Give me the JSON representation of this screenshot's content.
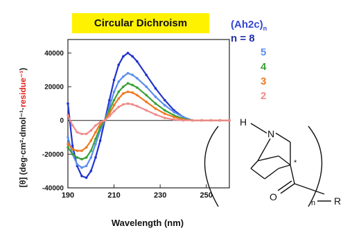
{
  "chart_data": {
    "type": "line",
    "title": "Circular Dichroism",
    "xlabel": "Wavelength (nm)",
    "ylabel_prefix": "[θ] (deg·cm²·dmol⁻¹·",
    "ylabel_highlight": "residue⁻¹",
    "ylabel_suffix": ")",
    "xlim": [
      190,
      260
    ],
    "ylim": [
      -40000,
      48000
    ],
    "xticks": [
      190,
      210,
      230,
      250
    ],
    "yticks": [
      -40000,
      -20000,
      0,
      20000,
      40000
    ],
    "ytick_labels": [
      "-40000",
      "-20000",
      "0",
      "20000",
      "40000"
    ],
    "legend_title": "(Ah2c)",
    "legend_title_sub": "n",
    "legend_prefix": "n = ",
    "series": [
      {
        "name": "8",
        "color": "#2233cc",
        "x": [
          190,
          192,
          194,
          196,
          198,
          200,
          202,
          204,
          206,
          208,
          210,
          212,
          214,
          216,
          218,
          220,
          224,
          228,
          232,
          236,
          240,
          244,
          248,
          252,
          256,
          260
        ],
        "y": [
          10000,
          -15000,
          -27000,
          -33000,
          -34000,
          -30000,
          -22000,
          -12000,
          0,
          12000,
          24000,
          33000,
          38000,
          40000,
          38000,
          35000,
          27000,
          19000,
          12000,
          6000,
          2000,
          0,
          0,
          0,
          0,
          0
        ]
      },
      {
        "name": "5",
        "color": "#5a8ef0",
        "x": [
          190,
          192,
          194,
          196,
          198,
          200,
          202,
          204,
          206,
          208,
          210,
          212,
          214,
          216,
          218,
          220,
          224,
          228,
          232,
          236,
          240,
          244,
          248,
          252,
          256,
          260
        ],
        "y": [
          -10000,
          -20000,
          -26000,
          -28000,
          -27000,
          -22000,
          -14000,
          -6000,
          0,
          8000,
          17000,
          23000,
          26000,
          28000,
          27000,
          25000,
          20000,
          14000,
          9000,
          5000,
          2000,
          0,
          0,
          0,
          0,
          0
        ]
      },
      {
        "name": "4",
        "color": "#3aa13a",
        "x": [
          190,
          192,
          194,
          196,
          198,
          200,
          202,
          204,
          206,
          208,
          210,
          212,
          214,
          216,
          218,
          220,
          224,
          228,
          232,
          236,
          240,
          244,
          248,
          252,
          256,
          260
        ],
        "y": [
          -16000,
          -20000,
          -22000,
          -23000,
          -22000,
          -18000,
          -11000,
          -4000,
          0,
          6000,
          12000,
          17000,
          20000,
          22000,
          21000,
          19500,
          15000,
          10000,
          6000,
          3000,
          1000,
          0,
          0,
          0,
          0,
          0
        ]
      },
      {
        "name": "3",
        "color": "#f07820",
        "x": [
          190,
          192,
          194,
          196,
          198,
          200,
          202,
          204,
          206,
          208,
          210,
          212,
          214,
          216,
          218,
          220,
          224,
          228,
          232,
          236,
          240,
          244,
          248,
          252,
          256,
          260
        ],
        "y": [
          -14000,
          -17000,
          -18000,
          -18000,
          -16000,
          -12000,
          -7000,
          -2000,
          0,
          4000,
          9000,
          13000,
          16000,
          17000,
          16500,
          15000,
          11000,
          7000,
          4000,
          2000,
          500,
          0,
          0,
          0,
          0,
          0
        ]
      },
      {
        "name": "2",
        "color": "#f08a8a",
        "x": [
          190,
          192,
          194,
          196,
          198,
          200,
          202,
          204,
          206,
          208,
          210,
          212,
          214,
          216,
          218,
          220,
          224,
          228,
          232,
          236,
          240,
          244,
          248,
          252,
          256,
          260
        ],
        "y": [
          3000,
          -3000,
          -7000,
          -8000,
          -8000,
          -6000,
          -3000,
          -1000,
          0,
          2500,
          5500,
          8000,
          9500,
          10000,
          9500,
          8500,
          6000,
          3500,
          1500,
          500,
          0,
          0,
          0,
          0,
          0,
          0
        ]
      }
    ]
  },
  "structure": {
    "label_left": "H",
    "label_right": "R",
    "atom_n": "N",
    "atom_o": "O",
    "subscript": "n",
    "stereo_mark": "*"
  }
}
